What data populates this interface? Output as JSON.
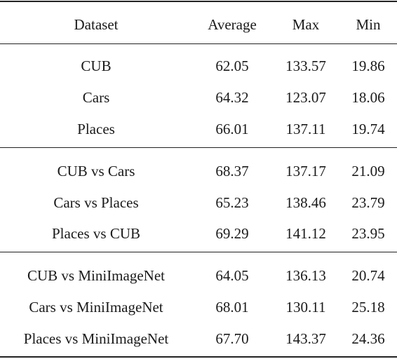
{
  "table": {
    "headers": [
      "Dataset",
      "Average",
      "Max",
      "Min"
    ],
    "groups": [
      [
        [
          "CUB",
          "62.05",
          "133.57",
          "19.86"
        ],
        [
          "Cars",
          "64.32",
          "123.07",
          "18.06"
        ],
        [
          "Places",
          "66.01",
          "137.11",
          "19.74"
        ]
      ],
      [
        [
          "CUB vs Cars",
          "68.37",
          "137.17",
          "21.09"
        ],
        [
          "Cars vs Places",
          "65.23",
          "138.46",
          "23.79"
        ],
        [
          "Places vs CUB",
          "69.29",
          "141.12",
          "23.95"
        ]
      ],
      [
        [
          "CUB vs MiniImageNet",
          "64.05",
          "136.13",
          "20.74"
        ],
        [
          "Cars vs MiniImageNet",
          "68.01",
          "130.11",
          "25.18"
        ],
        [
          "Places vs MiniImageNet",
          "67.70",
          "143.37",
          "24.36"
        ]
      ]
    ]
  }
}
